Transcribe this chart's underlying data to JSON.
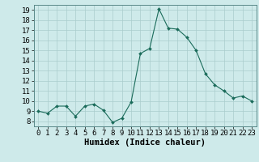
{
  "x": [
    0,
    1,
    2,
    3,
    4,
    5,
    6,
    7,
    8,
    9,
    10,
    11,
    12,
    13,
    14,
    15,
    16,
    17,
    18,
    19,
    20,
    21,
    22,
    23
  ],
  "y": [
    9.0,
    8.8,
    9.5,
    9.5,
    8.5,
    9.5,
    9.7,
    9.1,
    7.9,
    8.3,
    9.9,
    14.7,
    15.2,
    19.1,
    17.2,
    17.1,
    16.3,
    15.0,
    12.7,
    11.6,
    11.0,
    10.3,
    10.5,
    10.0
  ],
  "line_color": "#1a6b5a",
  "marker": "D",
  "marker_size": 2.0,
  "bg_color": "#ceeaea",
  "grid_color": "#aacccc",
  "xlabel": "Humidex (Indice chaleur)",
  "tick_fontsize": 6.5,
  "xlabel_fontsize": 7.5,
  "ylim": [
    7.5,
    19.5
  ],
  "xlim": [
    -0.5,
    23.5
  ],
  "yticks": [
    8,
    9,
    10,
    11,
    12,
    13,
    14,
    15,
    16,
    17,
    18,
    19
  ],
  "xticks": [
    0,
    1,
    2,
    3,
    4,
    5,
    6,
    7,
    8,
    9,
    10,
    11,
    12,
    13,
    14,
    15,
    16,
    17,
    18,
    19,
    20,
    21,
    22,
    23
  ]
}
